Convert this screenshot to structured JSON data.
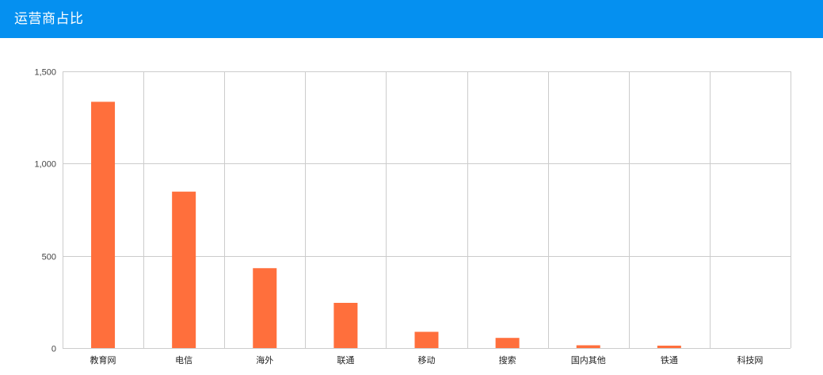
{
  "header": {
    "title": "运营商占比"
  },
  "colors": {
    "header_bg": "#0590f0",
    "bar": "#ff6f3c",
    "grid": "#cccccc"
  },
  "chart_data": {
    "type": "bar",
    "title": "运营商占比",
    "categories": [
      "教育网",
      "电信",
      "海外",
      "联通",
      "移动",
      "搜索",
      "国内其他",
      "铁通",
      "科技网"
    ],
    "values": [
      1335,
      848,
      433,
      245,
      88,
      55,
      15,
      13,
      0
    ],
    "ylim": [
      0,
      1500
    ],
    "yticks": [
      0,
      500,
      1000,
      1500
    ],
    "ytick_labels": [
      "0",
      "500",
      "1,000",
      "1,500"
    ],
    "grid": true,
    "legend": "none"
  }
}
